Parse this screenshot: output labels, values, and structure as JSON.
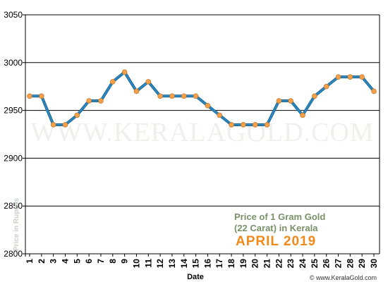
{
  "chart_data": {
    "type": "line",
    "title_line1": "Price of 1 Gram Gold",
    "title_line2": "(22 Carat) in Kerala",
    "title_period": "APRIL 2019",
    "xlabel": "Date",
    "ylabel": "Price in Rupees",
    "watermark": "WWW.KERALAGOLD.COM",
    "footer": "© www.KeralaGold.com",
    "ylim": [
      2800,
      3050
    ],
    "yticks": [
      2800,
      2850,
      2900,
      2950,
      3000,
      3050
    ],
    "x": [
      1,
      2,
      3,
      4,
      5,
      6,
      7,
      8,
      9,
      10,
      11,
      12,
      13,
      14,
      15,
      16,
      17,
      18,
      19,
      20,
      21,
      22,
      23,
      24,
      25,
      26,
      27,
      28,
      29,
      30
    ],
    "values": [
      2965,
      2965,
      2935,
      2935,
      2945,
      2960,
      2960,
      2980,
      2990,
      2970,
      2980,
      2965,
      2965,
      2965,
      2965,
      2955,
      2945,
      2935,
      2935,
      2935,
      2935,
      2960,
      2960,
      2945,
      2965,
      2975,
      2985,
      2985,
      2985,
      2970
    ],
    "grid": true,
    "colors": {
      "line": "#2a88c2",
      "marker": "#f5a04a",
      "marker_edge": "#c47a2e",
      "grid": "#000000"
    }
  }
}
